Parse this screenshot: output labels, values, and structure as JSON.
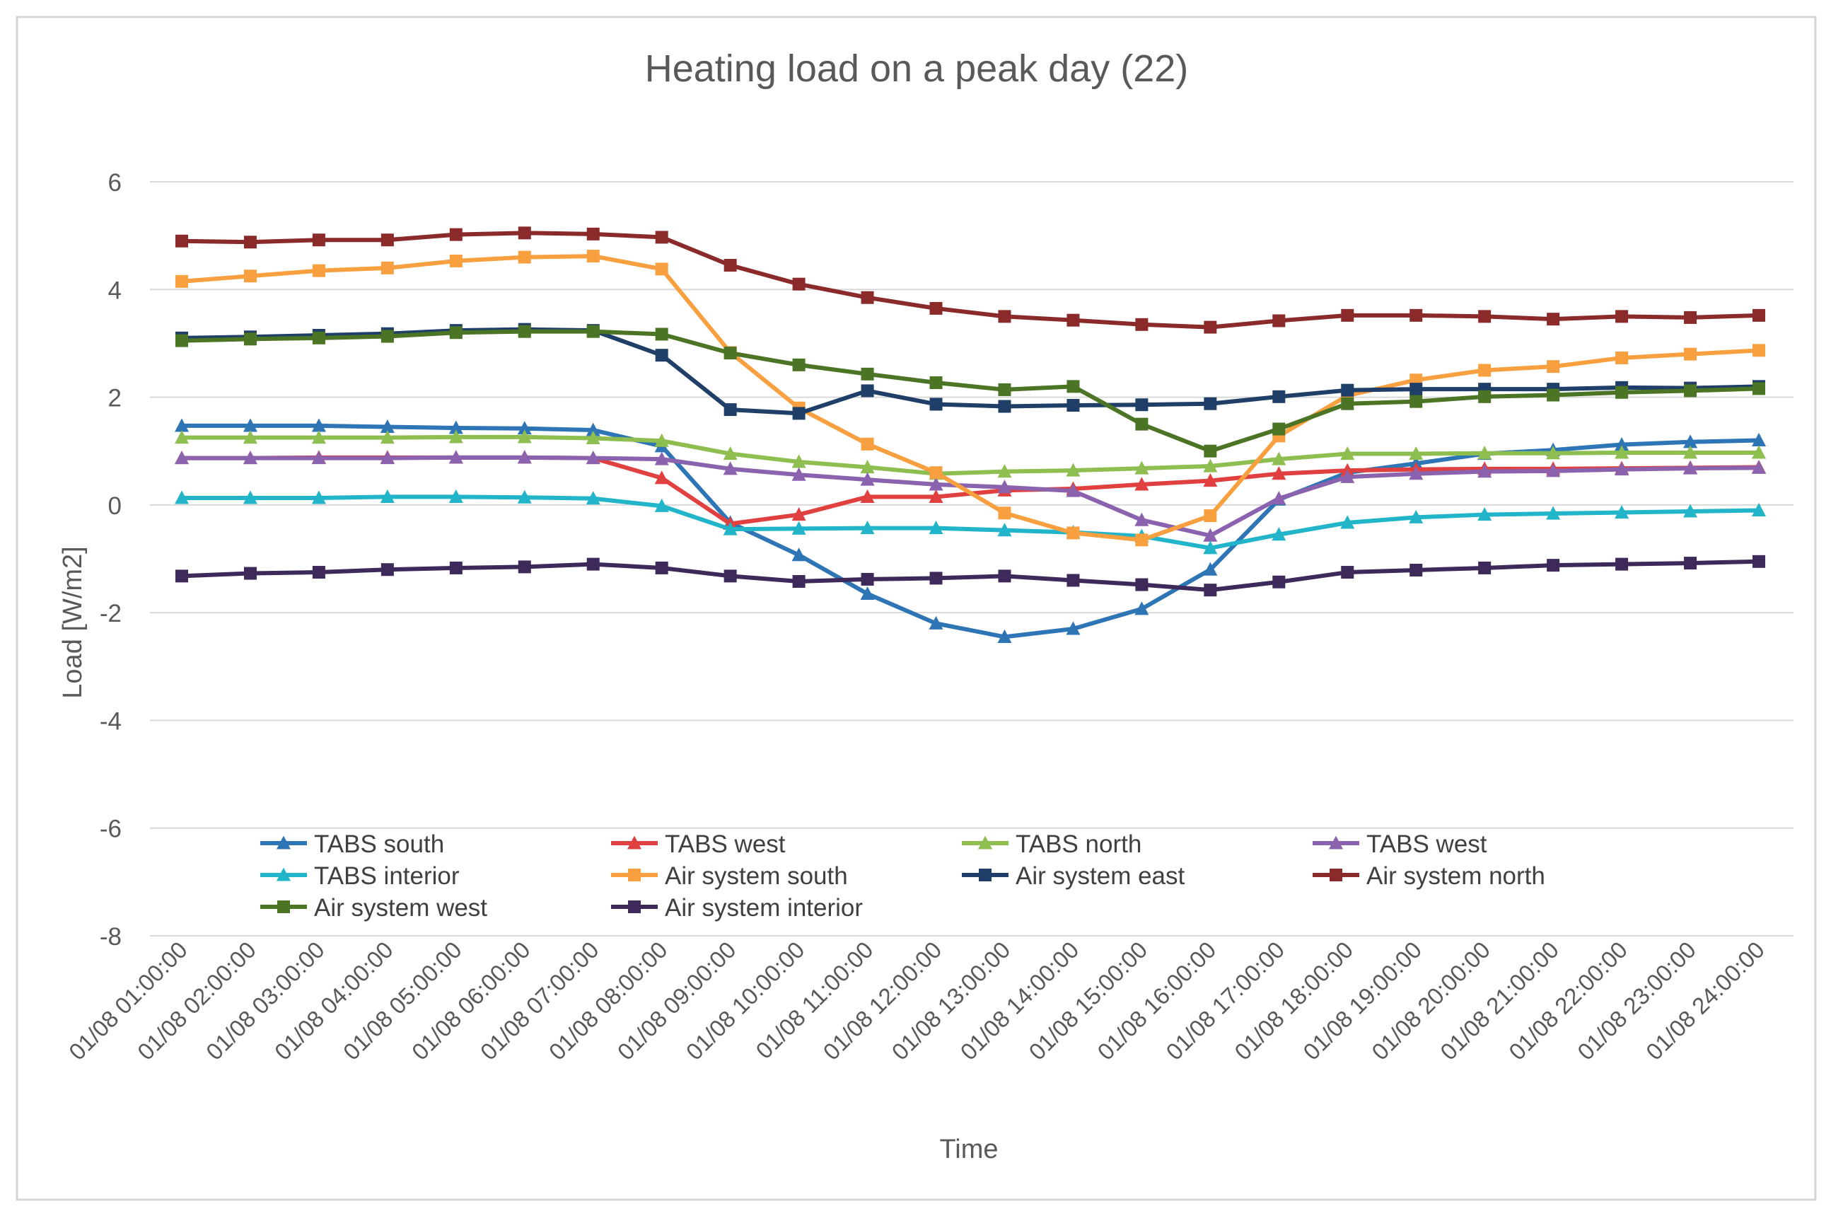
{
  "chart_data": {
    "type": "line",
    "title": "Heating load on a peak day (22)",
    "xlabel": "Time",
    "ylabel": "Load [W/m2]",
    "ylim": [
      -8,
      6
    ],
    "yticks": [
      6,
      4,
      2,
      0,
      -2,
      -4,
      -6,
      -8
    ],
    "grid": true,
    "legend_position": "bottom-inside",
    "categories": [
      "01/08  01:00:00",
      "01/08  02:00:00",
      "01/08  03:00:00",
      "01/08  04:00:00",
      "01/08  05:00:00",
      "01/08  06:00:00",
      "01/08  07:00:00",
      "01/08  08:00:00",
      "01/08  09:00:00",
      "01/08  10:00:00",
      "01/08  11:00:00",
      "01/08  12:00:00",
      "01/08  13:00:00",
      "01/08  14:00:00",
      "01/08  15:00:00",
      "01/08  16:00:00",
      "01/08  17:00:00",
      "01/08  18:00:00",
      "01/08  19:00:00",
      "01/08  20:00:00",
      "01/08  21:00:00",
      "01/08  22:00:00",
      "01/08  23:00:00",
      "01/08  24:00:00"
    ],
    "series": [
      {
        "name": "TABS south",
        "color": "#2E75B6",
        "marker": "triangle",
        "values": [
          1.47,
          1.47,
          1.47,
          1.45,
          1.43,
          1.42,
          1.39,
          1.09,
          -0.33,
          -0.93,
          -1.65,
          -2.2,
          -2.45,
          -2.3,
          -1.93,
          -1.2,
          0.1,
          0.6,
          0.77,
          0.95,
          1.02,
          1.12,
          1.17,
          1.2
        ]
      },
      {
        "name": "TABS west",
        "color": "#E0403F",
        "marker": "triangle",
        "values": [
          0.87,
          0.87,
          0.88,
          0.88,
          0.88,
          0.88,
          0.87,
          0.5,
          -0.35,
          -0.18,
          0.15,
          0.15,
          0.27,
          0.3,
          0.38,
          0.45,
          0.58,
          0.64,
          0.66,
          0.67,
          0.67,
          0.68,
          0.69,
          0.7
        ]
      },
      {
        "name": "TABS north",
        "color": "#8DBE4F",
        "marker": "triangle",
        "values": [
          1.25,
          1.25,
          1.25,
          1.25,
          1.26,
          1.26,
          1.24,
          1.19,
          0.95,
          0.8,
          0.7,
          0.58,
          0.62,
          0.64,
          0.68,
          0.72,
          0.85,
          0.95,
          0.95,
          0.96,
          0.96,
          0.97,
          0.97,
          0.97
        ]
      },
      {
        "name": "TABS west",
        "color": "#8A62AE",
        "marker": "triangle",
        "values": [
          0.87,
          0.87,
          0.87,
          0.87,
          0.88,
          0.88,
          0.87,
          0.85,
          0.67,
          0.56,
          0.47,
          0.38,
          0.33,
          0.26,
          -0.28,
          -0.57,
          0.12,
          0.52,
          0.58,
          0.62,
          0.63,
          0.66,
          0.68,
          0.69
        ]
      },
      {
        "name": "TABS interior",
        "color": "#22B5C9",
        "marker": "triangle",
        "values": [
          0.13,
          0.13,
          0.13,
          0.15,
          0.15,
          0.14,
          0.12,
          -0.02,
          -0.45,
          -0.44,
          -0.43,
          -0.43,
          -0.47,
          -0.51,
          -0.58,
          -0.8,
          -0.55,
          -0.33,
          -0.23,
          -0.18,
          -0.16,
          -0.14,
          -0.12,
          -0.1
        ]
      },
      {
        "name": "Air system south",
        "color": "#F8A040",
        "marker": "square",
        "values": [
          4.15,
          4.25,
          4.35,
          4.4,
          4.53,
          4.6,
          4.62,
          4.38,
          2.83,
          1.8,
          1.13,
          0.6,
          -0.15,
          -0.52,
          -0.65,
          -0.2,
          1.28,
          2.03,
          2.32,
          2.5,
          2.57,
          2.73,
          2.8,
          2.87
        ]
      },
      {
        "name": "Air system east",
        "color": "#1F3F68",
        "marker": "square",
        "values": [
          3.1,
          3.12,
          3.15,
          3.18,
          3.24,
          3.26,
          3.24,
          2.78,
          1.77,
          1.7,
          2.12,
          1.87,
          1.83,
          1.85,
          1.86,
          1.88,
          2.01,
          2.13,
          2.15,
          2.15,
          2.15,
          2.18,
          2.17,
          2.2
        ]
      },
      {
        "name": "Air system north",
        "color": "#8B2A2A",
        "marker": "square",
        "values": [
          4.9,
          4.88,
          4.92,
          4.92,
          5.02,
          5.05,
          5.03,
          4.97,
          4.45,
          4.1,
          3.85,
          3.65,
          3.5,
          3.43,
          3.35,
          3.3,
          3.42,
          3.52,
          3.52,
          3.5,
          3.45,
          3.5,
          3.48,
          3.52
        ]
      },
      {
        "name": "Air system west",
        "color": "#4B7425",
        "marker": "square",
        "values": [
          3.05,
          3.08,
          3.1,
          3.13,
          3.2,
          3.22,
          3.22,
          3.17,
          2.82,
          2.6,
          2.43,
          2.27,
          2.14,
          2.2,
          1.5,
          1.0,
          1.41,
          1.88,
          1.92,
          2.01,
          2.04,
          2.09,
          2.12,
          2.16
        ]
      },
      {
        "name": "Air system interior",
        "color": "#3D2A5A",
        "marker": "square",
        "values": [
          -1.32,
          -1.27,
          -1.25,
          -1.2,
          -1.17,
          -1.15,
          -1.1,
          -1.17,
          -1.32,
          -1.42,
          -1.38,
          -1.36,
          -1.32,
          -1.4,
          -1.48,
          -1.58,
          -1.43,
          -1.25,
          -1.21,
          -1.17,
          -1.12,
          -1.1,
          -1.08,
          -1.05
        ]
      }
    ]
  }
}
